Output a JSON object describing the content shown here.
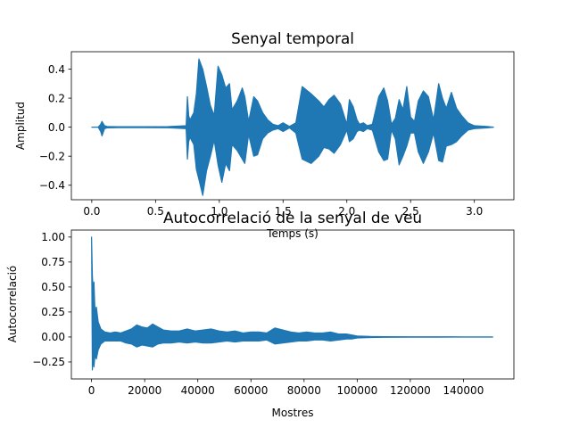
{
  "chart_data": [
    {
      "type": "line",
      "title": "Senyal temporal",
      "xlabel": "Temps (s)",
      "ylabel": "Amplitud",
      "xlim": [
        -0.16,
        3.31
      ],
      "ylim": [
        -0.5,
        0.52
      ],
      "xticks": [
        0.0,
        0.5,
        1.0,
        1.5,
        2.0,
        2.5,
        3.0
      ],
      "xtick_labels": [
        "0.0",
        "0.5",
        "1.0",
        "1.5",
        "2.0",
        "2.5",
        "3.0"
      ],
      "yticks": [
        -0.4,
        -0.2,
        0.0,
        0.2,
        0.4
      ],
      "ytick_labels": [
        "−0.4",
        "−0.2",
        "0.0",
        "0.2",
        "0.4"
      ],
      "grid": false,
      "color": "#1f77b4",
      "series": [
        {
          "x": [
            0.0,
            0.05,
            0.07,
            0.08,
            0.1,
            0.12,
            0.2,
            0.4,
            0.6,
            0.74,
            0.75,
            0.76,
            0.77,
            0.8,
            0.82,
            0.84,
            0.87,
            0.9,
            0.93,
            0.96,
            0.99,
            1.02,
            1.05,
            1.08,
            1.1,
            1.14,
            1.18,
            1.2,
            1.23,
            1.27,
            1.3,
            1.34,
            1.38,
            1.42,
            1.46,
            1.5,
            1.55,
            1.6,
            1.65,
            1.72,
            1.78,
            1.82,
            1.86,
            1.9,
            1.95,
            2.0,
            2.02,
            2.05,
            2.08,
            2.1,
            2.13,
            2.16,
            2.2,
            2.25,
            2.29,
            2.32,
            2.35,
            2.38,
            2.41,
            2.44,
            2.47,
            2.5,
            2.53,
            2.56,
            2.6,
            2.64,
            2.68,
            2.72,
            2.75,
            2.78,
            2.82,
            2.86,
            2.9,
            2.95,
            3.0,
            3.1,
            3.15
          ],
          "upper": [
            0.0,
            0.0,
            0.02,
            0.04,
            0.01,
            0.005,
            0.003,
            0.003,
            0.004,
            0.01,
            0.21,
            0.08,
            0.05,
            0.1,
            0.23,
            0.47,
            0.4,
            0.28,
            0.15,
            0.08,
            0.42,
            0.36,
            0.27,
            0.3,
            0.12,
            0.18,
            0.27,
            0.21,
            0.04,
            0.21,
            0.18,
            0.1,
            0.05,
            0.02,
            0.01,
            0.03,
            0.005,
            0.03,
            0.28,
            0.23,
            0.18,
            0.14,
            0.19,
            0.22,
            0.16,
            0.02,
            0.19,
            0.14,
            0.05,
            0.02,
            0.03,
            0.01,
            0.02,
            0.21,
            0.27,
            0.18,
            0.02,
            0.06,
            0.19,
            0.12,
            0.28,
            0.07,
            0.04,
            0.18,
            0.25,
            0.21,
            0.05,
            0.3,
            0.2,
            0.13,
            0.24,
            0.13,
            0.08,
            0.03,
            0.01,
            0.005,
            0.0
          ],
          "lower": [
            0.0,
            0.0,
            -0.03,
            -0.06,
            -0.01,
            -0.005,
            -0.003,
            -0.003,
            -0.004,
            -0.01,
            -0.22,
            -0.1,
            -0.07,
            -0.12,
            -0.29,
            -0.36,
            -0.47,
            -0.3,
            -0.2,
            -0.09,
            -0.26,
            -0.38,
            -0.25,
            -0.3,
            -0.12,
            -0.16,
            -0.22,
            -0.25,
            -0.05,
            -0.2,
            -0.19,
            -0.08,
            -0.04,
            -0.02,
            -0.01,
            -0.03,
            -0.005,
            -0.04,
            -0.22,
            -0.25,
            -0.2,
            -0.14,
            -0.15,
            -0.18,
            -0.12,
            -0.02,
            -0.1,
            -0.08,
            -0.03,
            -0.02,
            -0.03,
            -0.01,
            -0.02,
            -0.17,
            -0.23,
            -0.22,
            -0.02,
            -0.08,
            -0.26,
            -0.2,
            -0.13,
            -0.04,
            -0.04,
            -0.17,
            -0.25,
            -0.17,
            -0.04,
            -0.23,
            -0.24,
            -0.13,
            -0.12,
            -0.1,
            -0.06,
            -0.02,
            -0.01,
            -0.005,
            0.0
          ]
        }
      ]
    },
    {
      "type": "line",
      "title": "Autocorrelació de la senyal de veu",
      "xlabel": "Mostres",
      "ylabel": "Autocorrelació",
      "xlim": [
        -7600,
        159000
      ],
      "ylim": [
        -0.42,
        1.07
      ],
      "xticks": [
        0,
        20000,
        40000,
        60000,
        80000,
        100000,
        120000,
        140000
      ],
      "xtick_labels": [
        "0",
        "20000",
        "40000",
        "60000",
        "80000",
        "100000",
        "120000",
        "140000"
      ],
      "yticks": [
        -0.25,
        0.0,
        0.25,
        0.5,
        0.75,
        1.0
      ],
      "ytick_labels": [
        "−0.25",
        "0.00",
        "0.25",
        "0.50",
        "0.75",
        "1.00"
      ],
      "grid": false,
      "color": "#1f77b4",
      "series": [
        {
          "x": [
            0,
            300,
            600,
            900,
            1300,
            1800,
            2500,
            3500,
            5000,
            7000,
            9000,
            11000,
            13000,
            15000,
            17000,
            19000,
            21000,
            23000,
            25000,
            27000,
            30000,
            33000,
            36000,
            39000,
            42000,
            45000,
            48000,
            51000,
            54000,
            57000,
            60000,
            63000,
            66000,
            69000,
            72000,
            75000,
            78000,
            81000,
            84000,
            87000,
            90000,
            93000,
            96000,
            98000,
            100000,
            105000,
            110000,
            120000,
            130000,
            140000,
            151000
          ],
          "upper": [
            1.0,
            0.62,
            0.45,
            0.55,
            0.25,
            0.3,
            0.15,
            0.08,
            0.05,
            0.04,
            0.05,
            0.04,
            0.06,
            0.08,
            0.12,
            0.1,
            0.09,
            0.13,
            0.1,
            0.07,
            0.06,
            0.06,
            0.08,
            0.06,
            0.07,
            0.08,
            0.06,
            0.05,
            0.06,
            0.04,
            0.05,
            0.05,
            0.04,
            0.09,
            0.07,
            0.05,
            0.04,
            0.05,
            0.04,
            0.04,
            0.05,
            0.03,
            0.03,
            0.02,
            0.01,
            0.005,
            0.003,
            0.002,
            0.002,
            0.001,
            0.001
          ],
          "lower": [
            1.0,
            -0.33,
            -0.2,
            -0.3,
            -0.18,
            -0.22,
            -0.13,
            -0.07,
            -0.04,
            -0.04,
            -0.04,
            -0.04,
            -0.06,
            -0.07,
            -0.1,
            -0.08,
            -0.09,
            -0.1,
            -0.07,
            -0.06,
            -0.06,
            -0.05,
            -0.06,
            -0.05,
            -0.06,
            -0.06,
            -0.05,
            -0.04,
            -0.05,
            -0.04,
            -0.04,
            -0.04,
            -0.03,
            -0.07,
            -0.06,
            -0.05,
            -0.04,
            -0.04,
            -0.03,
            -0.03,
            -0.04,
            -0.03,
            -0.02,
            -0.02,
            -0.01,
            -0.005,
            -0.003,
            -0.002,
            -0.002,
            -0.001,
            -0.001
          ]
        }
      ]
    }
  ]
}
